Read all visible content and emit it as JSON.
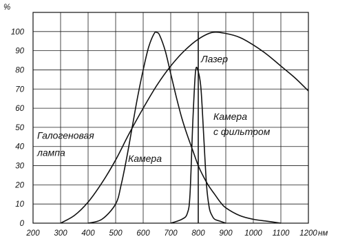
{
  "chart_data": {
    "type": "line",
    "ylabel": "%",
    "x_unit": "нм",
    "xlim": [
      200,
      1200
    ],
    "ylim": [
      0,
      110
    ],
    "grid": true,
    "x_ticks": [
      "200",
      "300",
      "400",
      "500",
      "600",
      "700",
      "800",
      "900",
      "1000",
      "1100",
      "1200"
    ],
    "y_ticks": [
      "0",
      "10",
      "20",
      "30",
      "40",
      "50",
      "60",
      "70",
      "80",
      "90",
      "100"
    ],
    "series": [
      {
        "name": "Галогеновая лампа",
        "x": [
          300,
          350,
          400,
          450,
          500,
          550,
          600,
          650,
          700,
          750,
          800,
          850,
          900,
          950,
          1000,
          1050,
          1100,
          1150,
          1200
        ],
        "y": [
          0,
          4,
          11,
          21,
          33,
          47,
          60,
          72,
          82,
          90,
          96,
          99.5,
          99,
          97,
          93,
          88,
          82,
          76,
          69
        ]
      },
      {
        "name": "Камера",
        "x": [
          400,
          450,
          500,
          520,
          540,
          560,
          580,
          600,
          620,
          640,
          650,
          660,
          680,
          700,
          720,
          740,
          760,
          780,
          800,
          820,
          840,
          860,
          880,
          900,
          950,
          1000,
          1050,
          1100
        ],
        "y": [
          0,
          2,
          10,
          20,
          34,
          50,
          66,
          80,
          92,
          99,
          99.5,
          98,
          90,
          78,
          66,
          55,
          46,
          38,
          30,
          24,
          19,
          15,
          11,
          8,
          4,
          2,
          1,
          0
        ]
      },
      {
        "name": "Камера с фильтром",
        "x": [
          700,
          740,
          760,
          770,
          780,
          790,
          800,
          810,
          820,
          830,
          840,
          850,
          860,
          880,
          900
        ],
        "y": [
          0,
          2,
          5,
          15,
          52,
          79,
          79,
          70,
          45,
          20,
          8,
          4,
          2,
          1,
          0
        ]
      },
      {
        "name": "Лазер",
        "x": [
          800,
          800
        ],
        "y": [
          0,
          100
        ]
      }
    ],
    "annotations": [
      {
        "text": "Галогеновая",
        "x": 215,
        "y": 44
      },
      {
        "text": "лампа",
        "x": 215,
        "y": 35
      },
      {
        "text": "Камера",
        "x": 545,
        "y": 32
      },
      {
        "text": "Лазер",
        "x": 810,
        "y": 84
      },
      {
        "text": "Камера",
        "x": 855,
        "y": 54
      },
      {
        "text": "с  фильтром",
        "x": 855,
        "y": 46
      }
    ]
  }
}
